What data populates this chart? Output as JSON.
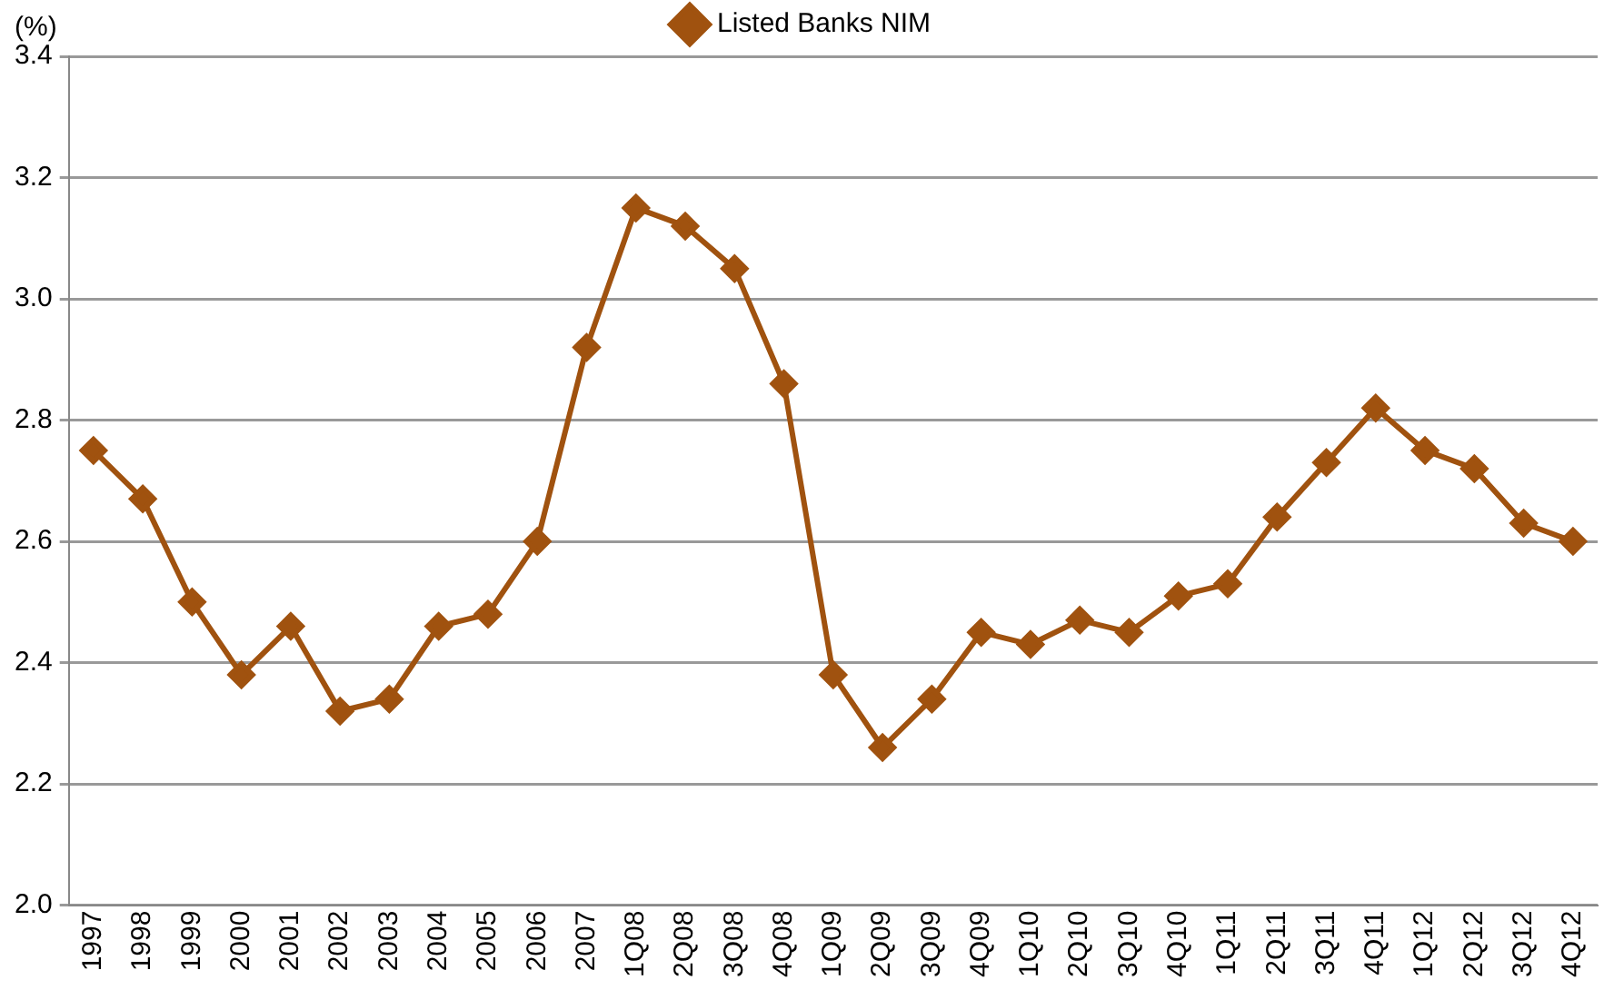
{
  "chart_data": {
    "type": "line",
    "ylabel": "(%)",
    "categories": [
      "1997",
      "1998",
      "1999",
      "2000",
      "2001",
      "2002",
      "2003",
      "2004",
      "2005",
      "2006",
      "2007",
      "1Q08",
      "2Q08",
      "3Q08",
      "4Q08",
      "1Q09",
      "2Q09",
      "3Q09",
      "4Q09",
      "1Q10",
      "2Q10",
      "3Q10",
      "4Q10",
      "1Q11",
      "2Q11",
      "3Q11",
      "4Q11",
      "1Q12",
      "2Q12",
      "3Q12",
      "4Q12"
    ],
    "series": [
      {
        "name": "Listed Banks NIM",
        "color": "#a0520f",
        "values": [
          2.75,
          2.67,
          2.5,
          2.38,
          2.46,
          2.32,
          2.34,
          2.46,
          2.48,
          2.6,
          2.92,
          3.15,
          3.12,
          3.05,
          2.86,
          2.38,
          2.26,
          2.34,
          2.45,
          2.43,
          2.47,
          2.45,
          2.51,
          2.53,
          2.64,
          2.73,
          2.82,
          2.75,
          2.72,
          2.63,
          2.6
        ]
      }
    ],
    "ylim": [
      2.0,
      3.4
    ],
    "yticks": [
      {
        "value": 2.0,
        "label": "2.0"
      },
      {
        "value": 2.2,
        "label": "2.2"
      },
      {
        "value": 2.4,
        "label": "2.4"
      },
      {
        "value": 2.6,
        "label": "2.6"
      },
      {
        "value": 2.8,
        "label": "2.8"
      },
      {
        "value": 3.0,
        "label": "3.0"
      },
      {
        "value": 3.2,
        "label": "3.2"
      },
      {
        "value": 3.4,
        "label": "3.4"
      }
    ],
    "grid": "y",
    "legend": "top",
    "marker": "diamond",
    "line_style": "solid"
  }
}
